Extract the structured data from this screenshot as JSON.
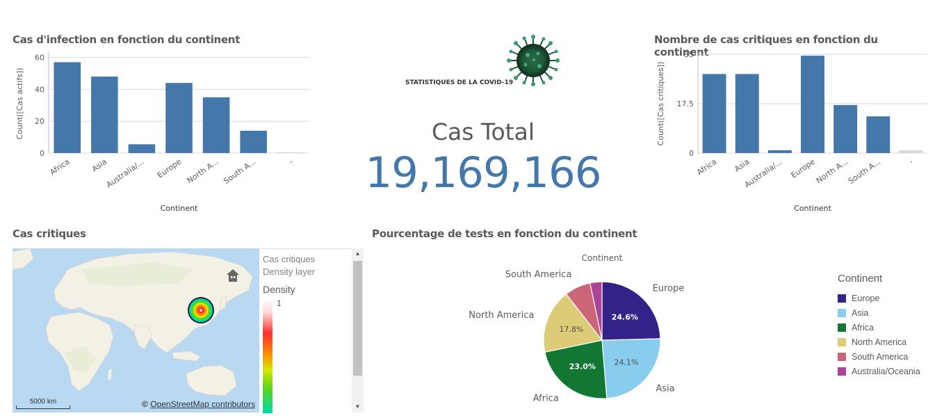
{
  "dashboard": {
    "chart1_title": "Cas d'infection en fonction du continent",
    "chart2_title": "Nombre de cas critiques en fonction du continent",
    "covid_title": "STATISTIQUES DE LA COVID-19",
    "kpi_label": "Cas Total",
    "kpi_value": "19,169,166",
    "map_title": "Cas critiques",
    "pie_title": "Pourcentage de tests en fonction du continent"
  },
  "map": {
    "legend_layer": "Cas critiques",
    "legend_layer_type": "Density layer",
    "density_label": "Density",
    "density_max": "1",
    "scale_label": "5000 km",
    "attribution_symbol": "©",
    "attribution_text": "OpenStreetMap contributors",
    "home_icon": "home-icon"
  },
  "pie_legend": {
    "title": "Continent",
    "items": [
      {
        "label": "Europe",
        "color": "#332288"
      },
      {
        "label": "Asia",
        "color": "#88ccee"
      },
      {
        "label": "Africa",
        "color": "#117733"
      },
      {
        "label": "North America",
        "color": "#ddcc77"
      },
      {
        "label": "South America",
        "color": "#cc6677"
      },
      {
        "label": "Australia/Oceania",
        "color": "#aa4499"
      }
    ]
  },
  "chart_data": [
    {
      "type": "bar",
      "title": "Cas d'infection en fonction du continent",
      "xlabel": "Continent",
      "ylabel": "Count([Cas actifs])",
      "categories": [
        "Africa",
        "Asia",
        "Australia/...",
        "Europe",
        "North A...",
        "South A...",
        "-"
      ],
      "values": [
        57,
        48,
        5.5,
        44,
        35,
        14,
        0.5
      ],
      "ylim": [
        0,
        62
      ],
      "yticks": [
        "0",
        "20",
        "40",
        "60"
      ],
      "ytick_values": [
        0,
        20,
        40,
        60
      ],
      "bar_color": "#4477aa",
      "null_color": "#d9d9d9",
      "grid": true
    },
    {
      "type": "bar",
      "title": "Nombre de cas critiques en fonction du continent",
      "xlabel": "Continent",
      "ylabel": "Count([Cas critiques])",
      "categories": [
        "Africa",
        "Asia",
        "Australia/...",
        "Europe",
        "North A...",
        "South A...",
        "-"
      ],
      "values": [
        28,
        28,
        1,
        34.5,
        17,
        13,
        1
      ],
      "ylim": [
        0,
        35
      ],
      "yticks": [
        "0",
        "17.5",
        "35"
      ],
      "ytick_values": [
        0,
        17.5,
        35
      ],
      "bar_color": "#4477aa",
      "null_color": "#d9d9d9",
      "grid": true
    },
    {
      "type": "pie",
      "title": "Continent",
      "labels": [
        "Europe",
        "Asia",
        "Africa",
        "North America",
        "South America",
        "Australia/Oceania"
      ],
      "values": [
        24.6,
        24.1,
        23.0,
        17.8,
        7.2,
        3.3
      ],
      "value_labels": [
        "24.6%",
        "24.1%",
        "23.0%",
        "17.8%",
        "",
        ""
      ],
      "colors": [
        "#332288",
        "#88ccee",
        "#117733",
        "#ddcc77",
        "#cc6677",
        "#aa4499"
      ]
    }
  ]
}
